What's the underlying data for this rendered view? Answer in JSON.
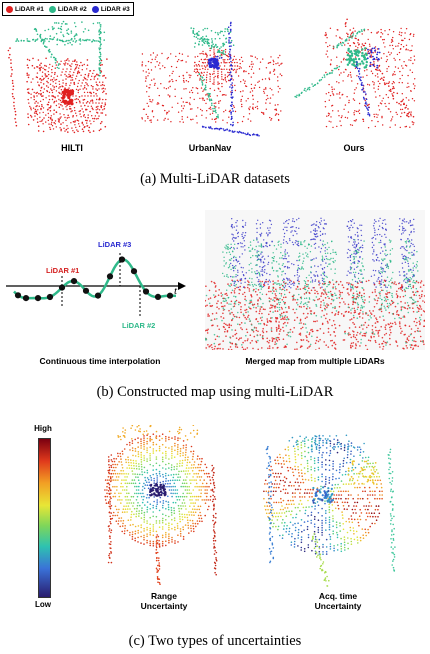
{
  "legend": {
    "items": [
      {
        "label": "LiDAR #1",
        "color": "#e02020"
      },
      {
        "label": "LiDAR #2",
        "color": "#2fb98a"
      },
      {
        "label": "LiDAR #3",
        "color": "#2a2ad0"
      }
    ]
  },
  "panel_a": {
    "datasets": [
      "HILTI",
      "UrbanNav",
      "Ours"
    ],
    "caption": "(a)  Multi-LiDAR datasets"
  },
  "panel_b": {
    "lidar1": "LiDAR #1",
    "lidar2": "LiDAR #2",
    "lidar3": "LiDAR #3",
    "time_symbol": "t",
    "left_label": "Continuous time interpolation",
    "right_label": "Merged map from multiple LiDARs",
    "caption": "(b)  Constructed map using multi-LiDAR"
  },
  "panel_c": {
    "colorbar_high": "High",
    "colorbar_low": "Low",
    "left_label_line1": "Range",
    "left_label_line2": "Uncertainty",
    "right_label_line1": "Acq. time",
    "right_label_line2": "Uncertainty",
    "caption": "(c)  Two types of uncertainties"
  }
}
